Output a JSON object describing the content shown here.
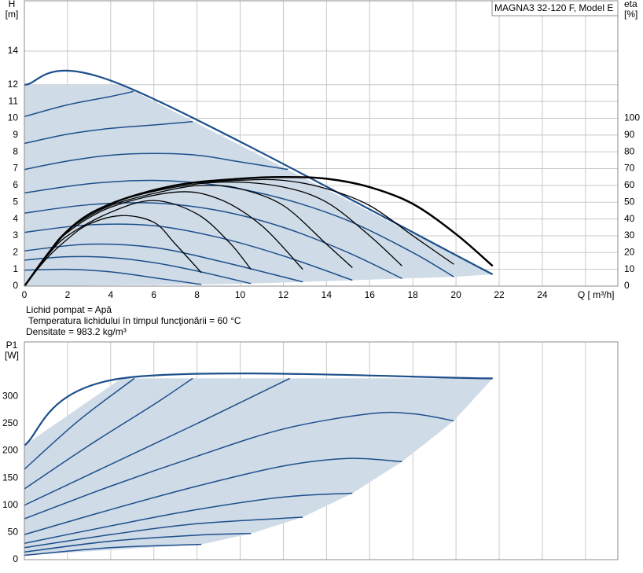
{
  "chart_data": [
    {
      "type": "line",
      "title": "MAGNA3 32-120 F, Model E",
      "y_label": "H",
      "y_unit": "[m]",
      "y2_label": "eta",
      "y2_unit": "[%]",
      "x_label": "Q [ m³/h]",
      "xlim": [
        0,
        27.5
      ],
      "xticks": [
        0,
        2,
        4,
        6,
        8,
        10,
        12,
        14,
        16,
        18,
        20,
        22,
        24
      ],
      "xgrid": [
        2,
        4,
        6,
        8,
        10,
        12,
        14,
        16,
        18,
        20,
        22,
        24,
        26
      ],
      "ylim": [
        0,
        17
      ],
      "yticks": [
        0,
        1,
        2,
        3,
        4,
        5,
        6,
        7,
        8,
        9,
        10,
        11,
        12,
        14
      ],
      "y2lim": [
        0,
        170
      ],
      "y2ticks": [
        0,
        10,
        20,
        30,
        40,
        50,
        60,
        70,
        80,
        90,
        100
      ],
      "grid": "both",
      "area": {
        "color": "#cfdbe7",
        "x": [
          0,
          4.5,
          21.7,
          19.9,
          17.5,
          15.2,
          12.9,
          10.5,
          8.2,
          0
        ],
        "values": [
          12,
          12,
          0.7,
          0.55,
          0.45,
          0.35,
          0.25,
          0.15,
          0.1,
          0
        ]
      },
      "series": [
        {
          "color": "#1d4f8c",
          "width": 2.2,
          "x": [
            0,
            4.5,
            21.7
          ],
          "values": [
            12,
            12,
            0.7
          ]
        },
        {
          "color": "#1d4f8c",
          "width": 1.5,
          "x": [
            0,
            2,
            4,
            6,
            8.2
          ],
          "values": [
            0.95,
            1.0,
            0.85,
            0.5,
            0.1
          ]
        },
        {
          "color": "#1d4f8c",
          "width": 1.5,
          "x": [
            0,
            2,
            4,
            6,
            8,
            10.5
          ],
          "values": [
            1.55,
            1.75,
            1.7,
            1.4,
            0.9,
            0.15
          ]
        },
        {
          "color": "#1d4f8c",
          "width": 1.5,
          "x": [
            0,
            3,
            6,
            9,
            12.9
          ],
          "values": [
            2.1,
            2.5,
            2.3,
            1.5,
            0.25
          ]
        },
        {
          "color": "#1d4f8c",
          "width": 1.5,
          "x": [
            0,
            3,
            6,
            9,
            12,
            15.2
          ],
          "values": [
            3.2,
            3.65,
            3.6,
            2.9,
            1.8,
            0.35
          ]
        },
        {
          "color": "#1d4f8c",
          "width": 1.5,
          "x": [
            0,
            3,
            6,
            9,
            12,
            15,
            17.5
          ],
          "values": [
            4.35,
            4.85,
            4.95,
            4.5,
            3.5,
            2.0,
            0.45
          ]
        },
        {
          "color": "#1d4f8c",
          "width": 1.5,
          "x": [
            0,
            3,
            6,
            9,
            12,
            15,
            18,
            19.9
          ],
          "values": [
            5.55,
            6.1,
            6.3,
            6.0,
            5.2,
            3.9,
            2.0,
            0.55
          ]
        },
        {
          "color": "#1d4f8c",
          "width": 1.5,
          "x": [
            0,
            2,
            4,
            6,
            8,
            10,
            12.2
          ],
          "values": [
            6.95,
            7.45,
            7.8,
            7.9,
            7.8,
            7.4,
            6.95
          ]
        },
        {
          "color": "#1d4f8c",
          "width": 1.5,
          "x": [
            0,
            2,
            4,
            6,
            7.8
          ],
          "values": [
            8.5,
            9.05,
            9.4,
            9.6,
            9.8
          ]
        },
        {
          "color": "#1d4f8c",
          "width": 1.5,
          "x": [
            0,
            2,
            4,
            5.06
          ],
          "values": [
            10.1,
            10.8,
            11.3,
            11.6
          ]
        },
        {
          "color": "#000000",
          "width": 1.3,
          "axis": "y2",
          "x": [
            0,
            1,
            2,
            3,
            4.5,
            6,
            7,
            8.2
          ],
          "values": [
            0,
            16,
            28,
            37,
            42,
            38,
            25,
            8
          ]
        },
        {
          "color": "#000000",
          "width": 1.3,
          "axis": "y2",
          "x": [
            0,
            1,
            2,
            4,
            6,
            8,
            9.5,
            10.5
          ],
          "values": [
            0,
            17,
            30,
            44,
            51,
            43,
            26,
            10
          ]
        },
        {
          "color": "#000000",
          "width": 1.3,
          "axis": "y2",
          "x": [
            0,
            1,
            2,
            4,
            7,
            9,
            11,
            12.9
          ],
          "values": [
            0,
            18,
            32,
            47,
            56,
            52,
            36,
            10
          ]
        },
        {
          "color": "#000000",
          "width": 1.3,
          "axis": "y2",
          "x": [
            0,
            1,
            2,
            4,
            7,
            8.5,
            10,
            12,
            14,
            15.2
          ],
          "values": [
            0,
            18,
            33,
            48,
            58,
            60,
            58,
            48,
            25,
            11
          ]
        },
        {
          "color": "#000000",
          "width": 1.3,
          "axis": "y2",
          "x": [
            0,
            2,
            4,
            7,
            9.5,
            12,
            14,
            16,
            17.5
          ],
          "values": [
            0,
            33,
            49,
            59,
            62,
            59,
            50,
            30,
            12
          ]
        },
        {
          "color": "#000000",
          "width": 1.3,
          "axis": "y2",
          "x": [
            0,
            2,
            4,
            7,
            10,
            12,
            14,
            16,
            18,
            19.9
          ],
          "values": [
            0,
            33,
            49,
            60,
            63,
            63,
            58,
            48,
            30,
            13
          ]
        },
        {
          "color": "#000000",
          "width": 2.5,
          "axis": "y2",
          "x": [
            0,
            2,
            4,
            7,
            10,
            12,
            14,
            16,
            18,
            20,
            21.7
          ],
          "values": [
            0,
            33,
            49,
            60,
            64,
            65,
            64,
            59,
            49,
            31,
            12
          ]
        }
      ]
    },
    {
      "type": "line",
      "y_label": "P1",
      "y_unit": "[W]",
      "xlim": [
        0,
        27.5
      ],
      "xgrid": [
        2,
        4,
        6,
        8,
        10,
        12,
        14,
        16,
        18,
        20,
        22,
        24,
        26
      ],
      "ylim": [
        0,
        400
      ],
      "yticks": [
        0,
        50,
        100,
        150,
        200,
        250,
        300
      ],
      "grid": "x",
      "area": {
        "color": "#cfdbe7",
        "x": [
          0,
          4.5,
          21.7,
          19.9,
          17.5,
          15.2,
          12.9,
          10.5,
          8.2,
          0
        ],
        "values": [
          210,
          333,
          333,
          255,
          180,
          122,
          78,
          48,
          28,
          8
        ]
      },
      "series": [
        {
          "color": "#1d4f8c",
          "width": 2.2,
          "x": [
            0,
            4.5,
            21.7
          ],
          "values": [
            210,
            333,
            333
          ]
        },
        {
          "color": "#1d4f8c",
          "width": 1.5,
          "x": [
            0,
            4,
            8.2
          ],
          "values": [
            8,
            22,
            28
          ]
        },
        {
          "color": "#1d4f8c",
          "width": 1.5,
          "x": [
            0,
            4,
            8,
            10.5
          ],
          "values": [
            14,
            34,
            45,
            48
          ]
        },
        {
          "color": "#1d4f8c",
          "width": 1.5,
          "x": [
            0,
            4,
            8,
            12.9
          ],
          "values": [
            22,
            46,
            66,
            78
          ]
        },
        {
          "color": "#1d4f8c",
          "width": 1.5,
          "x": [
            0,
            4,
            8,
            12,
            15.2
          ],
          "values": [
            30,
            62,
            92,
            115,
            122
          ]
        },
        {
          "color": "#1d4f8c",
          "width": 1.5,
          "x": [
            0,
            4,
            8,
            12,
            15,
            17.5
          ],
          "values": [
            46,
            92,
            135,
            172,
            186,
            180
          ]
        },
        {
          "color": "#1d4f8c",
          "width": 1.5,
          "x": [
            0,
            4,
            8,
            12,
            16,
            18,
            19.9
          ],
          "values": [
            75,
            135,
            190,
            240,
            268,
            268,
            255
          ]
        },
        {
          "color": "#1d4f8c",
          "width": 1.5,
          "x": [
            0,
            4,
            8,
            12.3
          ],
          "values": [
            100,
            175,
            250,
            333
          ]
        },
        {
          "color": "#1d4f8c",
          "width": 1.5,
          "x": [
            0,
            3,
            6,
            7.8
          ],
          "values": [
            130,
            210,
            285,
            333
          ]
        },
        {
          "color": "#1d4f8c",
          "width": 1.5,
          "x": [
            0,
            2.5,
            5.1
          ],
          "values": [
            166,
            255,
            333
          ]
        }
      ]
    }
  ],
  "fluid_info": [
    "Lichid pompat = Apă",
    "Temperatura lichidului în timpul funcţionării = 60 °C",
    "Densitate = 983.2  kg/m³"
  ]
}
